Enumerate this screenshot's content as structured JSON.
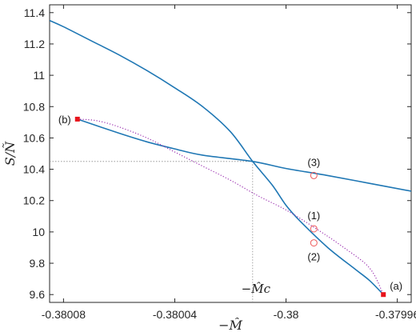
{
  "chart_data": {
    "type": "line",
    "title": "",
    "xlabel": "−M̂",
    "ylabel": "S/Ñ",
    "xlim": [
      -0.380085,
      -0.379955
    ],
    "ylim": [
      9.55,
      11.45
    ],
    "xticks": [
      -0.38008,
      -0.38004,
      -0.38,
      -0.37996
    ],
    "xtick_labels": [
      "-0.38008",
      "-0.38004",
      "-0.38",
      "-0.37996"
    ],
    "yticks": [
      9.6,
      9.8,
      10,
      10.2,
      10.4,
      10.6,
      10.8,
      11,
      11.2,
      11.4
    ],
    "ytick_labels": [
      "9.6",
      "9.8",
      "10",
      "10.2",
      "10.4",
      "10.6",
      "10.8",
      "11",
      "11.2",
      "11.4"
    ],
    "grid": false,
    "series": [
      {
        "style": "solid",
        "color": "#1f77b4",
        "points": [
          [
            -0.380085,
            11.35
          ],
          [
            -0.38008,
            11.31
          ],
          [
            -0.38007,
            11.22
          ],
          [
            -0.38006,
            11.13
          ],
          [
            -0.38005,
            11.03
          ],
          [
            -0.38004,
            10.92
          ],
          [
            -0.38003,
            10.8
          ],
          [
            -0.38002,
            10.64
          ],
          [
            -0.380012,
            10.45
          ],
          [
            -0.380005,
            10.3
          ],
          [
            -0.38,
            10.17
          ],
          [
            -0.379995,
            10.07
          ],
          [
            -0.379985,
            9.9
          ],
          [
            -0.379975,
            9.76
          ],
          [
            -0.37997,
            9.69
          ],
          [
            -0.379965,
            9.6
          ]
        ]
      },
      {
        "style": "solid",
        "color": "#1f77b4",
        "points": [
          [
            -0.380075,
            10.72
          ],
          [
            -0.38006,
            10.63
          ],
          [
            -0.38005,
            10.575
          ],
          [
            -0.38004,
            10.53
          ],
          [
            -0.38003,
            10.49
          ],
          [
            -0.380012,
            10.45
          ],
          [
            -0.38,
            10.405
          ],
          [
            -0.379985,
            10.36
          ],
          [
            -0.37997,
            10.31
          ],
          [
            -0.379955,
            10.26
          ]
        ]
      },
      {
        "style": "dotted",
        "color": "#9b30b0",
        "points": [
          [
            -0.380075,
            10.72
          ],
          [
            -0.380068,
            10.71
          ],
          [
            -0.38006,
            10.67
          ],
          [
            -0.38005,
            10.6
          ],
          [
            -0.38004,
            10.51
          ],
          [
            -0.38003,
            10.42
          ],
          [
            -0.38002,
            10.33
          ],
          [
            -0.38001,
            10.23
          ],
          [
            -0.38,
            10.14
          ],
          [
            -0.37999,
            10.03
          ],
          [
            -0.37998,
            9.91
          ],
          [
            -0.37997,
            9.77
          ],
          [
            -0.379965,
            9.6
          ]
        ]
      }
    ],
    "endpoints": [
      {
        "label": "(b)",
        "x": -0.380075,
        "y": 10.72,
        "color": "#e8141c"
      },
      {
        "label": "(a)",
        "x": -0.379965,
        "y": 9.6,
        "color": "#e8141c"
      }
    ],
    "marked_points": [
      {
        "label": "(3)",
        "x": -0.37999,
        "y": 10.36,
        "color": "#ee5a5a"
      },
      {
        "label": "(1)",
        "x": -0.37999,
        "y": 10.02,
        "color": "#ee5a5a"
      },
      {
        "label": "(2)",
        "x": -0.37999,
        "y": 9.93,
        "color": "#ee5a5a"
      }
    ],
    "critical_point": {
      "label": "−M̂c",
      "x": -0.380012,
      "y": 10.45
    }
  }
}
